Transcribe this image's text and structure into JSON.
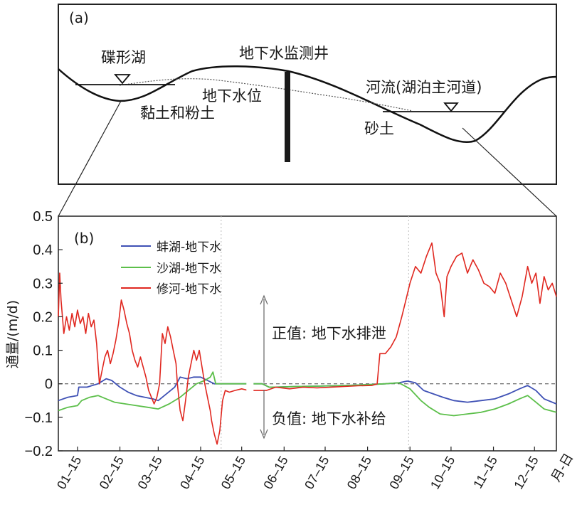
{
  "panel_a": {
    "label": "(a)",
    "lake_label": "碟形湖",
    "well_label": "地下水监测井",
    "water_table_label": "地下水位",
    "river_label": "河流(湖泊主河道)",
    "clay_label": "黏土和粉土",
    "sand_label": "砂土"
  },
  "chart_data": {
    "type": "line",
    "panel_label": "(b)",
    "ylabel": "通量/(m/d)",
    "xlabel": "月-日",
    "ylim": [
      -0.2,
      0.5
    ],
    "yticks": [
      "0.5",
      "0.4",
      "0.3",
      "0.2",
      "0.1",
      "0",
      "−0.1",
      "−0.2"
    ],
    "ytick_values": [
      0.5,
      0.4,
      0.3,
      0.2,
      0.1,
      0,
      -0.1,
      -0.2
    ],
    "xticks": [
      "01–15",
      "02–15",
      "03–15",
      "04–15",
      "05–15",
      "06–15",
      "07–15",
      "08–15",
      "09–15",
      "10–15",
      "11–15",
      "12–15"
    ],
    "xtick_days": [
      15,
      46,
      74,
      105,
      135,
      166,
      196,
      227,
      258,
      288,
      319,
      349
    ],
    "xlim": [
      1,
      365
    ],
    "annotations": {
      "positive": "正值: 地下水排泄",
      "negative": "负值: 地下水补给"
    },
    "legend_position": "top-left",
    "series": [
      {
        "name": "蚌湖-地下水",
        "color": "#3f51b5",
        "points": [
          [
            1,
            -0.05
          ],
          [
            8,
            -0.04
          ],
          [
            15,
            -0.035
          ],
          [
            16,
            -0.01
          ],
          [
            22,
            -0.01
          ],
          [
            30,
            0.0
          ],
          [
            36,
            0.015
          ],
          [
            40,
            0.01
          ],
          [
            46,
            -0.01
          ],
          [
            52,
            -0.025
          ],
          [
            58,
            -0.035
          ],
          [
            64,
            -0.04
          ],
          [
            70,
            -0.045
          ],
          [
            74,
            -0.05
          ],
          [
            80,
            -0.03
          ],
          [
            86,
            -0.01
          ],
          [
            90,
            0.02
          ],
          [
            95,
            0.015
          ],
          [
            100,
            0.02
          ],
          [
            105,
            0.02
          ],
          [
            110,
            0.01
          ],
          [
            115,
            0.0
          ],
          [
            120,
            0.0
          ],
          [
            135,
            0.0
          ],
          [
            150,
            0.0
          ],
          [
            155,
            -0.01
          ],
          [
            160,
            -0.01
          ],
          [
            175,
            -0.008
          ],
          [
            190,
            -0.007
          ],
          [
            210,
            -0.005
          ],
          [
            225,
            -0.003
          ],
          [
            240,
            0.0
          ],
          [
            250,
            0.003
          ],
          [
            256,
            0.008
          ],
          [
            262,
            0.003
          ],
          [
            268,
            -0.02
          ],
          [
            275,
            -0.03
          ],
          [
            282,
            -0.04
          ],
          [
            290,
            -0.05
          ],
          [
            300,
            -0.055
          ],
          [
            310,
            -0.05
          ],
          [
            320,
            -0.045
          ],
          [
            330,
            -0.03
          ],
          [
            338,
            -0.015
          ],
          [
            344,
            -0.005
          ],
          [
            350,
            -0.02
          ],
          [
            356,
            -0.045
          ],
          [
            365,
            -0.06
          ]
        ]
      },
      {
        "name": "沙湖-地下水",
        "color": "#5cbf4a",
        "points": [
          [
            1,
            -0.08
          ],
          [
            8,
            -0.07
          ],
          [
            15,
            -0.065
          ],
          [
            18,
            -0.05
          ],
          [
            24,
            -0.04
          ],
          [
            30,
            -0.035
          ],
          [
            36,
            -0.045
          ],
          [
            42,
            -0.055
          ],
          [
            50,
            -0.06
          ],
          [
            58,
            -0.065
          ],
          [
            66,
            -0.07
          ],
          [
            74,
            -0.075
          ],
          [
            82,
            -0.06
          ],
          [
            90,
            -0.04
          ],
          [
            96,
            -0.02
          ],
          [
            102,
            0.0
          ],
          [
            108,
            0.01
          ],
          [
            112,
            0.02
          ],
          [
            114,
            0.035
          ],
          [
            116,
            0.0
          ],
          [
            120,
            0.0
          ],
          [
            135,
            0.0
          ],
          [
            150,
            0.0
          ],
          [
            155,
            -0.01
          ],
          [
            160,
            -0.01
          ],
          [
            175,
            -0.008
          ],
          [
            190,
            -0.007
          ],
          [
            210,
            -0.005
          ],
          [
            225,
            -0.003
          ],
          [
            240,
            0.0
          ],
          [
            250,
            0.003
          ],
          [
            258,
            -0.015
          ],
          [
            266,
            -0.05
          ],
          [
            272,
            -0.07
          ],
          [
            280,
            -0.09
          ],
          [
            290,
            -0.095
          ],
          [
            300,
            -0.09
          ],
          [
            310,
            -0.085
          ],
          [
            320,
            -0.075
          ],
          [
            330,
            -0.06
          ],
          [
            338,
            -0.045
          ],
          [
            344,
            -0.035
          ],
          [
            350,
            -0.055
          ],
          [
            356,
            -0.075
          ],
          [
            365,
            -0.085
          ]
        ]
      },
      {
        "name": "修河-地下水",
        "color": "#e0271f",
        "points": [
          [
            1,
            0.2
          ],
          [
            2,
            0.33
          ],
          [
            3,
            0.25
          ],
          [
            5,
            0.15
          ],
          [
            7,
            0.2
          ],
          [
            9,
            0.16
          ],
          [
            11,
            0.21
          ],
          [
            13,
            0.17
          ],
          [
            15,
            0.22
          ],
          [
            17,
            0.18
          ],
          [
            19,
            0.2
          ],
          [
            21,
            0.15
          ],
          [
            23,
            0.21
          ],
          [
            25,
            0.17
          ],
          [
            27,
            0.19
          ],
          [
            29,
            0.12
          ],
          [
            31,
            0.0
          ],
          [
            33,
            0.04
          ],
          [
            35,
            0.08
          ],
          [
            37,
            0.1
          ],
          [
            39,
            0.06
          ],
          [
            41,
            0.09
          ],
          [
            43,
            0.13
          ],
          [
            45,
            0.18
          ],
          [
            47,
            0.25
          ],
          [
            49,
            0.22
          ],
          [
            51,
            0.18
          ],
          [
            53,
            0.15
          ],
          [
            55,
            0.1
          ],
          [
            57,
            0.07
          ],
          [
            59,
            0.05
          ],
          [
            61,
            0.08
          ],
          [
            63,
            0.05
          ],
          [
            65,
            0.02
          ],
          [
            67,
            -0.02
          ],
          [
            69,
            -0.04
          ],
          [
            71,
            -0.06
          ],
          [
            73,
            -0.04
          ],
          [
            75,
            0.0
          ],
          [
            77,
            0.15
          ],
          [
            79,
            0.12
          ],
          [
            81,
            0.17
          ],
          [
            83,
            0.14
          ],
          [
            85,
            0.1
          ],
          [
            87,
            0.06
          ],
          [
            88,
            0.0
          ],
          [
            90,
            -0.08
          ],
          [
            92,
            -0.11
          ],
          [
            94,
            -0.05
          ],
          [
            96,
            0.02
          ],
          [
            98,
            0.06
          ],
          [
            100,
            0.1
          ],
          [
            102,
            0.07
          ],
          [
            104,
            0.1
          ],
          [
            106,
            0.05
          ],
          [
            108,
            0.0
          ],
          [
            110,
            -0.04
          ],
          [
            112,
            -0.08
          ],
          [
            113,
            -0.11
          ],
          [
            115,
            -0.15
          ],
          [
            117,
            -0.18
          ],
          [
            119,
            -0.14
          ],
          [
            121,
            -0.05
          ],
          [
            123,
            -0.02
          ],
          [
            126,
            -0.025
          ],
          [
            130,
            -0.02
          ],
          [
            135,
            -0.015
          ],
          [
            140,
            -0.02
          ],
          [
            145,
            -0.02
          ],
          [
            150,
            -0.02
          ],
          [
            153,
            -0.02
          ],
          [
            160,
            -0.01
          ],
          [
            170,
            -0.015
          ],
          [
            180,
            -0.01
          ],
          [
            190,
            -0.012
          ],
          [
            200,
            -0.01
          ],
          [
            210,
            -0.008
          ],
          [
            220,
            -0.006
          ],
          [
            230,
            -0.005
          ],
          [
            234,
            0.0
          ],
          [
            236,
            0.09
          ],
          [
            240,
            0.09
          ],
          [
            244,
            0.11
          ],
          [
            248,
            0.14
          ],
          [
            252,
            0.2
          ],
          [
            255,
            0.25
          ],
          [
            258,
            0.3
          ],
          [
            262,
            0.35
          ],
          [
            266,
            0.33
          ],
          [
            270,
            0.38
          ],
          [
            274,
            0.42
          ],
          [
            277,
            0.33
          ],
          [
            280,
            0.3
          ],
          [
            283,
            0.2
          ],
          [
            285,
            0.32
          ],
          [
            288,
            0.35
          ],
          [
            292,
            0.38
          ],
          [
            296,
            0.39
          ],
          [
            300,
            0.33
          ],
          [
            304,
            0.37
          ],
          [
            308,
            0.34
          ],
          [
            312,
            0.3
          ],
          [
            316,
            0.29
          ],
          [
            320,
            0.27
          ],
          [
            324,
            0.33
          ],
          [
            328,
            0.3
          ],
          [
            332,
            0.25
          ],
          [
            336,
            0.2
          ],
          [
            340,
            0.26
          ],
          [
            344,
            0.35
          ],
          [
            347,
            0.3
          ],
          [
            350,
            0.33
          ],
          [
            353,
            0.24
          ],
          [
            356,
            0.32
          ],
          [
            359,
            0.28
          ],
          [
            362,
            0.3
          ],
          [
            365,
            0.26
          ]
        ]
      }
    ]
  }
}
